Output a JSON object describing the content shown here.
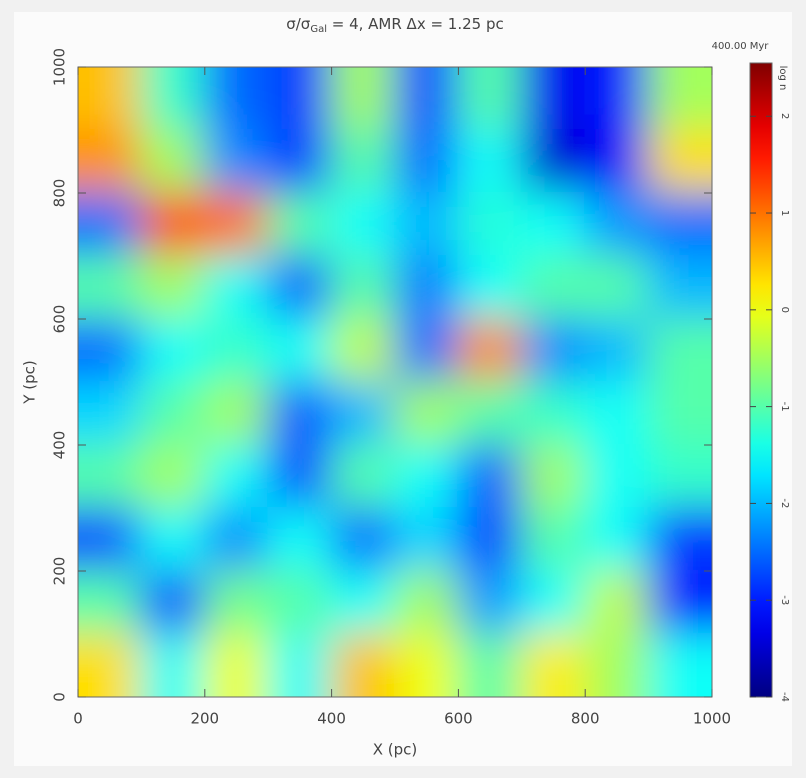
{
  "chart_data": {
    "type": "heatmap",
    "title": {
      "main": "σ/σ",
      "subscript": "Gal",
      "rest": " = 4, AMR Δx = 1.25 pc"
    },
    "time_label": "400.00 Myr",
    "colorbar_label": "log n",
    "x_label": "X (pc)",
    "y_label": "Y (pc)",
    "x": [
      50,
      150,
      250,
      350,
      450,
      550,
      650,
      750,
      850,
      950
    ],
    "y": [
      950,
      850,
      750,
      650,
      550,
      450,
      350,
      250,
      150,
      50
    ],
    "values": [
      [
        0.5,
        -1.2,
        -2.5,
        -2.8,
        -0.5,
        -2.7,
        -1,
        -3.3,
        -3,
        -0.5
      ],
      [
        0.8,
        -0.5,
        -2.3,
        -2.8,
        -1,
        -2.5,
        -1.5,
        -3.5,
        -3.2,
        0.3
      ],
      [
        -2.5,
        1.2,
        1,
        -1,
        -1.5,
        -2,
        -1.3,
        -1.5,
        -2.2,
        -2.5
      ],
      [
        -1,
        -0.5,
        -1.5,
        -2.6,
        -1,
        -2.4,
        -1.5,
        -1,
        -1,
        -2
      ],
      [
        -2.5,
        -1.5,
        -1.2,
        -1.5,
        -0.3,
        -2.5,
        0.8,
        -2.3,
        -2,
        -1
      ],
      [
        -1.8,
        -1,
        -0.5,
        -2.6,
        -2,
        -0.5,
        -1,
        -1.2,
        -1.5,
        -1
      ],
      [
        -1,
        -0.5,
        -1.5,
        -2.7,
        -1,
        -1.5,
        -2.6,
        -0.5,
        -1.5,
        -1.2
      ],
      [
        -2.7,
        -1.5,
        -2.3,
        -1.5,
        -2.5,
        -1.8,
        -2.8,
        -1,
        -1.5,
        -2.8
      ],
      [
        -1,
        -2.7,
        -0.8,
        -1,
        -1.5,
        -0.5,
        -2.2,
        -1.5,
        -0.3,
        -3
      ],
      [
        0.3,
        -1.5,
        0,
        -1.5,
        0.5,
        0,
        -1,
        0.2,
        -0.5,
        -1.5
      ]
    ],
    "xlim": [
      0,
      1000
    ],
    "ylim": [
      0,
      1000
    ],
    "xticks": [
      0,
      200,
      400,
      600,
      800,
      1000
    ],
    "yticks": [
      0,
      200,
      400,
      600,
      800,
      1000
    ],
    "zlim": [
      -4,
      2.55
    ],
    "zticks": [
      -4,
      -3,
      -2,
      -1,
      0,
      1,
      2
    ],
    "colormap": "jet"
  }
}
